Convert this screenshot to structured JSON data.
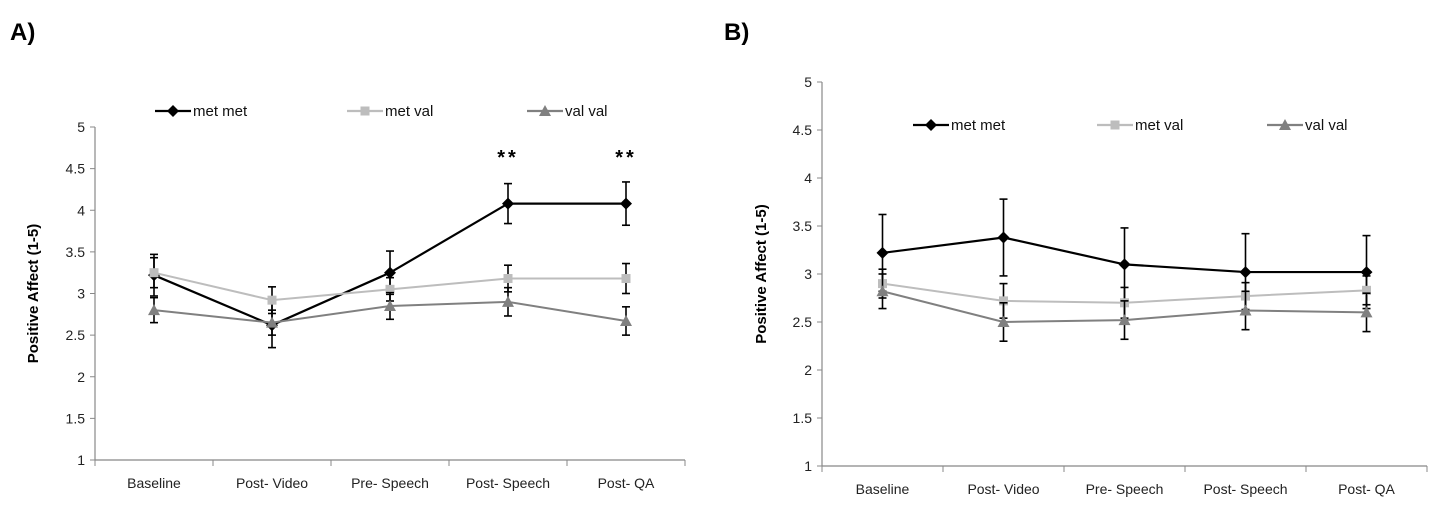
{
  "chart_data": [
    {
      "panel_label": "A)",
      "type": "line",
      "categories": [
        "Baseline",
        "Post- Video",
        "Pre- Speech",
        "Post- Speech",
        "Post- QA"
      ],
      "ylabel": "Positive Affect (1-5)",
      "xlabel": "",
      "ylim": [
        1,
        5
      ],
      "yticks": [
        "1",
        "1.5",
        "2",
        "2.5",
        "3",
        "3.5",
        "4",
        "4.5",
        "5"
      ],
      "grid": false,
      "legend_position": "top",
      "series": [
        {
          "name": "met met",
          "color": "#000000",
          "marker": "diamond",
          "values": [
            3.22,
            2.62,
            3.25,
            4.08,
            4.08
          ],
          "errors": [
            0.25,
            0.27,
            0.26,
            0.24,
            0.26
          ]
        },
        {
          "name": "met val",
          "color": "#bdbdbd",
          "marker": "square",
          "values": [
            3.25,
            2.92,
            3.05,
            3.18,
            3.18
          ],
          "errors": [
            0.18,
            0.16,
            0.14,
            0.16,
            0.18
          ]
        },
        {
          "name": "val val",
          "color": "#808080",
          "marker": "triangle",
          "values": [
            2.8,
            2.65,
            2.85,
            2.9,
            2.67
          ],
          "errors": [
            0.15,
            0.15,
            0.16,
            0.17,
            0.17
          ]
        }
      ],
      "annotations": [
        {
          "text": "**",
          "category": "Post- Speech",
          "y": 4.65
        },
        {
          "text": "**",
          "category": "Post- QA",
          "y": 4.65
        }
      ]
    },
    {
      "panel_label": "B)",
      "type": "line",
      "categories": [
        "Baseline",
        "Post- Video",
        "Pre- Speech",
        "Post- Speech",
        "Post- QA"
      ],
      "ylabel": "Positive Affect (1-5)",
      "xlabel": "",
      "ylim": [
        1,
        5
      ],
      "yticks": [
        "1",
        "1.5",
        "2",
        "2.5",
        "3",
        "3.5",
        "4",
        "4.5",
        "5"
      ],
      "grid": false,
      "legend_position": "top",
      "series": [
        {
          "name": "met met",
          "color": "#000000",
          "marker": "diamond",
          "values": [
            3.22,
            3.38,
            3.1,
            3.02,
            3.02
          ],
          "errors": [
            0.4,
            0.4,
            0.38,
            0.4,
            0.38
          ]
        },
        {
          "name": "met val",
          "color": "#bdbdbd",
          "marker": "square",
          "values": [
            2.9,
            2.72,
            2.7,
            2.77,
            2.83
          ],
          "errors": [
            0.15,
            0.18,
            0.16,
            0.14,
            0.15
          ]
        },
        {
          "name": "val val",
          "color": "#808080",
          "marker": "triangle",
          "values": [
            2.82,
            2.5,
            2.52,
            2.62,
            2.6
          ],
          "errors": [
            0.18,
            0.2,
            0.2,
            0.2,
            0.2
          ]
        }
      ],
      "annotations": []
    }
  ]
}
